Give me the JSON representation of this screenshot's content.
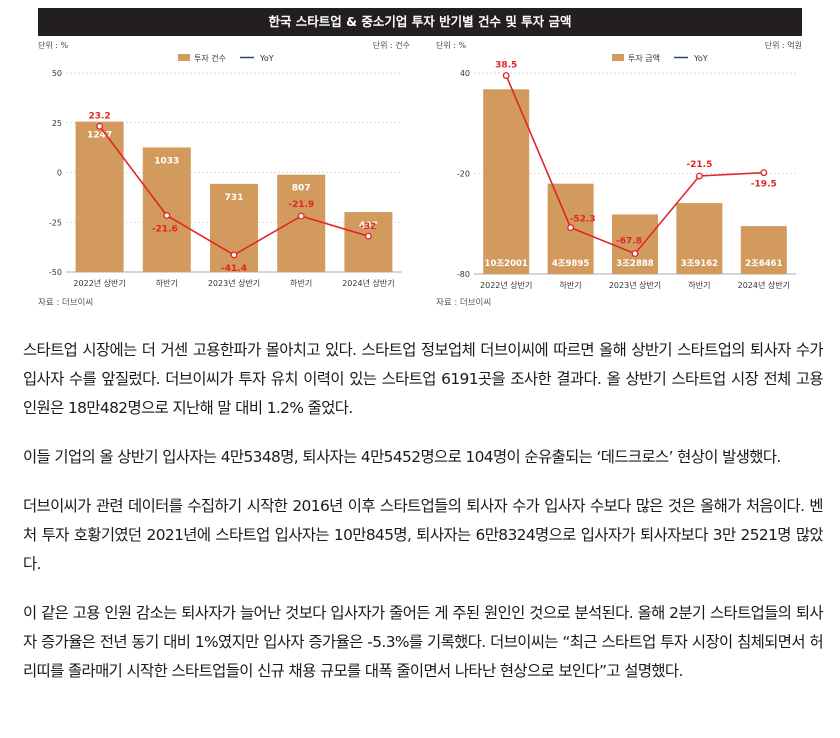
{
  "figure": {
    "title": "한국 스타트업 & 중소기업 투자 반기별 건수 및 투자 금액",
    "source_left": "자료 : 더브이씨",
    "source_right": "자료 : 더브이씨"
  },
  "colors": {
    "bar": "#d39a5d",
    "line": "#e0252b",
    "yoy_legend": "#2a3f8f",
    "title_bg": "#231f20"
  },
  "chart_data": [
    {
      "type": "bar+line",
      "unit_left": "단위 : %",
      "unit_right": "단위 : 건수",
      "legend": [
        "투자 건수",
        "YoY"
      ],
      "categories": [
        "2022년 상반기",
        "하반기",
        "2023년 상반기",
        "하반기",
        "2024년 상반기"
      ],
      "bar_values": [
        1247,
        1033,
        731,
        807,
        497
      ],
      "bar_labels": [
        "1247",
        "1033",
        "731",
        "807",
        "497"
      ],
      "yoy_values": [
        23.2,
        -21.6,
        -41.4,
        -21.9,
        -32
      ],
      "yoy_labels": [
        "23.2",
        "-21.6",
        "-41.4",
        "-21.9",
        "-32"
      ],
      "yaxis_ticks": [
        "50",
        "25",
        "0",
        "-25",
        "-50"
      ],
      "ylim": [
        -50,
        50
      ],
      "bar_ylim": [
        0,
        1650
      ]
    },
    {
      "type": "bar+line",
      "unit_left": "단위 : %",
      "unit_right": "단위 : 억원",
      "legend": [
        "투자 금액",
        "YoY"
      ],
      "categories": [
        "2022년 상반기",
        "하반기",
        "2023년 상반기",
        "하반기",
        "2024년 상반기"
      ],
      "bar_values": [
        102001,
        49895,
        32888,
        39162,
        26461
      ],
      "bar_labels": [
        "10조2001",
        "4조9895",
        "3조2888",
        "3조9162",
        "2조6461"
      ],
      "yoy_values": [
        38.5,
        -52.3,
        -67.8,
        -21.5,
        -19.5
      ],
      "yoy_labels": [
        "38.5",
        "-52.3",
        "-67.8",
        "-21.5",
        "-19.5"
      ],
      "yaxis_ticks": [
        "40",
        "-20",
        "-80"
      ],
      "ylim": [
        -80,
        40
      ],
      "bar_ylim": [
        0,
        111000
      ]
    }
  ],
  "article": [
    "스타트업 시장에는 더 거센 고용한파가 몰아치고 있다. 스타트업 정보업체 더브이씨에 따르면 올해 상반기 스타트업의 퇴사자 수가 입사자 수를 앞질렀다. 더브이씨가 투자 유치 이력이 있는 스타트업 6191곳을 조사한 결과다. 올 상반기 스타트업 시장 전체 고용 인원은 18만482명으로 지난해 말 대비 1.2% 줄었다.",
    "이들 기업의 올 상반기 입사자는 4만5348명, 퇴사자는 4만5452명으로 104명이 순유출되는 ‘데드크로스’ 현상이 발생했다.",
    "더브이씨가 관련 데이터를 수집하기 시작한 2016년 이후 스타트업들의 퇴사자 수가 입사자 수보다 많은 것은 올해가 처음이다. 벤처 투자 호황기였던 2021년에 스타트업 입사자는 10만845명, 퇴사자는 6만8324명으로 입사자가 퇴사자보다 3만 2521명 많았다.",
    "이 같은 고용 인원 감소는 퇴사자가 늘어난 것보다 입사자가 줄어든 게 주된 원인인 것으로 분석된다. 올해 2분기 스타트업들의 퇴사자 증가율은 전년 동기 대비 1%였지만 입사자 증가율은 -5.3%를 기록했다. 더브이씨는 “최근 스타트업 투자 시장이 침체되면서 허리띠를 졸라매기 시작한 스타트업들이 신규 채용 규모를 대폭 줄이면서 나타난 현상으로 보인다”고 설명했다."
  ]
}
